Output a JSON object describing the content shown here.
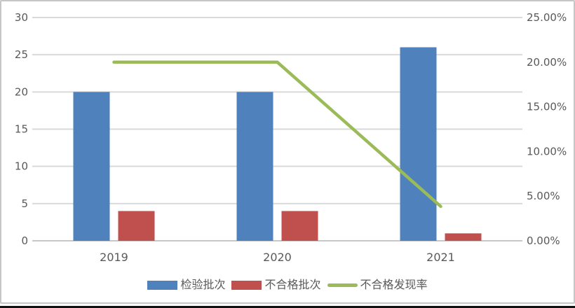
{
  "chart_data": {
    "type": "combo",
    "title": "",
    "categories": [
      "2019",
      "2020",
      "2021"
    ],
    "series": [
      {
        "key": "inspected-batches",
        "name": "检验批次",
        "type": "bar",
        "axis": "left",
        "color": "#4F81BD",
        "values": [
          20,
          20,
          26
        ]
      },
      {
        "key": "unqualified-batches",
        "name": "不合格批次",
        "type": "bar",
        "axis": "left",
        "color": "#C0504D",
        "values": [
          4,
          4,
          1
        ]
      },
      {
        "key": "unqualified-rate",
        "name": "不合格发现率",
        "type": "line",
        "axis": "right",
        "color": "#9BBB59",
        "values_pct": [
          20.0,
          20.0,
          3.85
        ]
      }
    ],
    "left_axis": {
      "min": 0,
      "max": 30,
      "tick_step": 5,
      "tick_labels": [
        "0",
        "5",
        "10",
        "15",
        "20",
        "25",
        "30"
      ]
    },
    "right_axis": {
      "min": 0,
      "max": 25,
      "tick_step": 5,
      "tick_labels": [
        "0.00%",
        "5.00%",
        "10.00%",
        "15.00%",
        "20.00%",
        "25.00%"
      ]
    },
    "grid": true,
    "legend_position": "bottom"
  },
  "colors": {
    "gridline": "#D9D9D9",
    "baseline": "#C9C9C9",
    "axis_text": "#595959",
    "frame_border": "#C6C6C6",
    "bottom_strip": "#111111"
  }
}
